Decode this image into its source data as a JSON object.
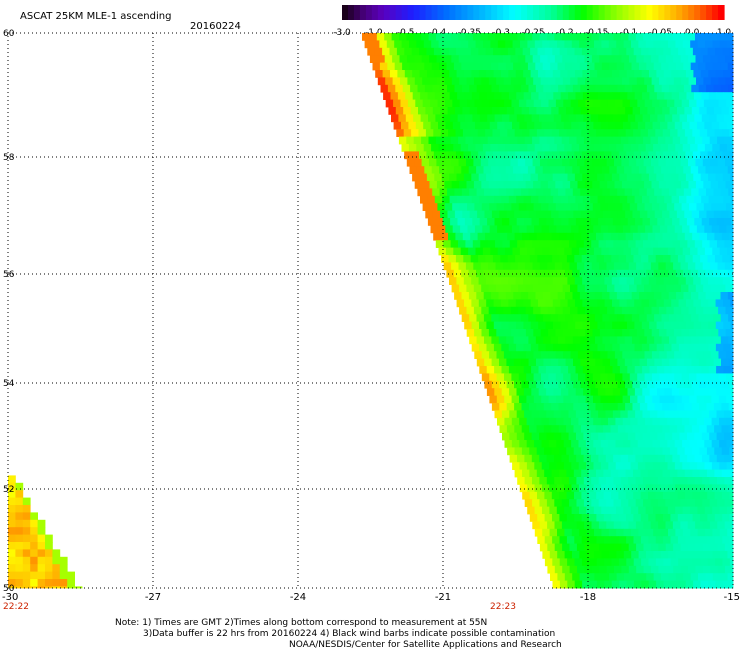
{
  "header": {
    "title": "ASCAT 25KM MLE-1 ascending",
    "date": "20160224"
  },
  "colorbar": {
    "labels": [
      "-3.0",
      "-1.0",
      "-0.5",
      "-0.4",
      "-0.35",
      "-0.3",
      "-0.25",
      "-0.2",
      "-0.15",
      "-0.1",
      "-0.05",
      "0.0",
      "1.0"
    ],
    "colors": [
      "#1a0020",
      "#4a0070",
      "#5a00c0",
      "#2020ff",
      "#0070ff",
      "#00b0ff",
      "#00ffff",
      "#00ff90",
      "#00ff00",
      "#90ff00",
      "#ffff00",
      "#ffb000",
      "#ff6000",
      "#ff0000"
    ]
  },
  "axes": {
    "lat_labels": [
      "60",
      "58",
      "56",
      "54",
      "52",
      "50"
    ],
    "lon_labels": [
      "-30",
      "-27",
      "-24",
      "-21",
      "-18",
      "-15"
    ],
    "lat_range": [
      50,
      60
    ],
    "lon_range": [
      -30,
      -15
    ]
  },
  "times": {
    "left": "22:22",
    "right": "22:23"
  },
  "notes": {
    "line1": "Note: 1) Times are GMT 2)Times along bottom correspond to measurement at 55N",
    "line2": "3)Data buffer is 22 hrs from 20160224 4) Black wind barbs indicate possible contamination",
    "line3": "NOAA/NESDIS/Center for Satellite Applications and Research"
  }
}
